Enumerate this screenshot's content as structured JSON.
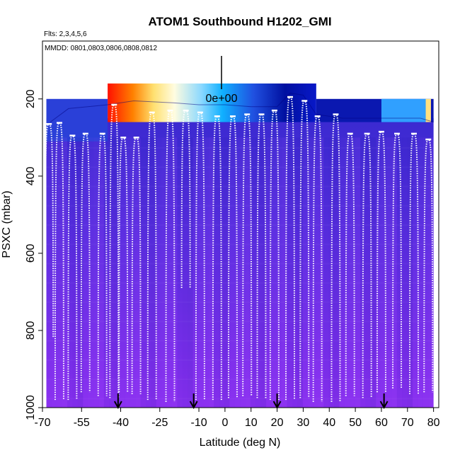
{
  "chart_data": {
    "type": "heatmap",
    "title": "ATOM1 Southbound H1202_GMI",
    "subtitle_flights": "Flts: 2,3,4,5,6",
    "subtitle_dates": "MMDD: 0801,0803,0806,0808,0812",
    "xlabel": "Latitude (deg N)",
    "ylabel": "PSXC (mbar)",
    "xlim": [
      -70,
      82
    ],
    "ylim": [
      1000,
      50
    ],
    "x_ticks": [
      -70,
      -55,
      -40,
      -25,
      -10,
      0,
      10,
      20,
      30,
      40,
      50,
      60,
      70,
      80
    ],
    "x_tick_labels": [
      "-70",
      "-55",
      "-40",
      "-25",
      "-10",
      "0",
      "10",
      "20",
      "30",
      "40",
      "50",
      "60",
      "70",
      "80"
    ],
    "y_ticks": [
      200,
      400,
      600,
      800,
      1000
    ],
    "y_tick_labels": [
      "200",
      "400",
      "600",
      "800",
      "1000"
    ],
    "colorbar_label": "0e+00",
    "profile_arrow_latitudes": [
      -41,
      -12,
      20,
      61
    ],
    "flight_track_color": "#ffffff",
    "tropopause_pressure_by_lat": [
      [
        -67,
        260
      ],
      [
        -60,
        225
      ],
      [
        -45,
        215
      ],
      [
        -35,
        205
      ],
      [
        -20,
        210
      ],
      [
        -10,
        215
      ],
      [
        0,
        215
      ],
      [
        10,
        220
      ],
      [
        20,
        220
      ],
      [
        25,
        185
      ],
      [
        30,
        190
      ],
      [
        35,
        240
      ],
      [
        45,
        250
      ],
      [
        55,
        250
      ],
      [
        65,
        250
      ],
      [
        75,
        250
      ],
      [
        80,
        260
      ]
    ],
    "flight_profiles": [
      {
        "lat": -67.5,
        "top": 265,
        "bottom": 820
      },
      {
        "lat": -63.5,
        "top": 262,
        "bottom": 980
      },
      {
        "lat": -58.5,
        "top": 295,
        "bottom": 980
      },
      {
        "lat": -53.5,
        "top": 290,
        "bottom": 960
      },
      {
        "lat": -47.0,
        "top": 290,
        "bottom": 970
      },
      {
        "lat": -42.5,
        "top": 215,
        "bottom": 975
      },
      {
        "lat": -39.0,
        "top": 300,
        "bottom": 960
      },
      {
        "lat": -34.0,
        "top": 300,
        "bottom": 965
      },
      {
        "lat": -28.0,
        "top": 235,
        "bottom": 980
      },
      {
        "lat": -21.0,
        "top": 230,
        "bottom": 985
      },
      {
        "lat": -15.0,
        "top": 230,
        "bottom": 690
      },
      {
        "lat": -9.5,
        "top": 235,
        "bottom": 980
      },
      {
        "lat": -3.0,
        "top": 245,
        "bottom": 980
      },
      {
        "lat": 3.0,
        "top": 245,
        "bottom": 975
      },
      {
        "lat": 8.5,
        "top": 240,
        "bottom": 970
      },
      {
        "lat": 14.0,
        "top": 240,
        "bottom": 975
      },
      {
        "lat": 19.0,
        "top": 230,
        "bottom": 980
      },
      {
        "lat": 25.0,
        "top": 195,
        "bottom": 980
      },
      {
        "lat": 30.5,
        "top": 205,
        "bottom": 975
      },
      {
        "lat": 35.5,
        "top": 245,
        "bottom": 985
      },
      {
        "lat": 42.5,
        "top": 240,
        "bottom": 985
      },
      {
        "lat": 48.0,
        "top": 290,
        "bottom": 970
      },
      {
        "lat": 54.5,
        "top": 290,
        "bottom": 975
      },
      {
        "lat": 60.0,
        "top": 285,
        "bottom": 960
      },
      {
        "lat": 66.0,
        "top": 290,
        "bottom": 950
      },
      {
        "lat": 72.5,
        "top": 290,
        "bottom": 965
      },
      {
        "lat": 78.0,
        "top": 305,
        "bottom": 960
      }
    ]
  }
}
